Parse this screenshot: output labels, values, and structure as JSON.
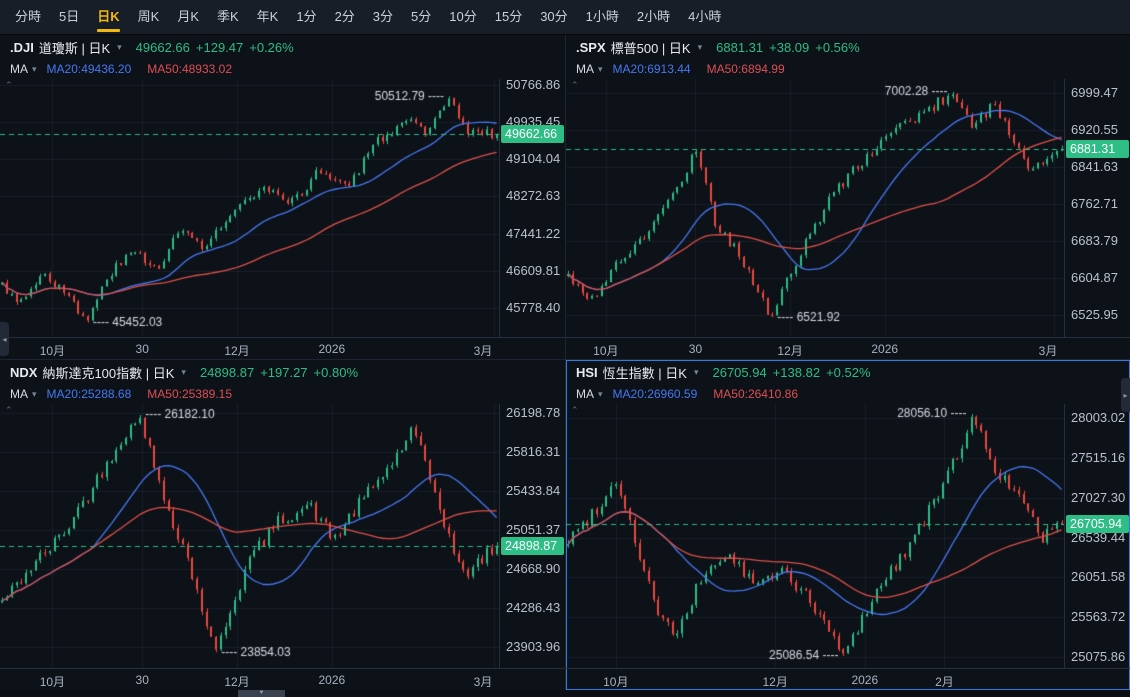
{
  "tabbar": {
    "tabs": [
      "分時",
      "5日",
      "日K",
      "周K",
      "月K",
      "季K",
      "年K",
      "1分",
      "2分",
      "3分",
      "5分",
      "10分",
      "15分",
      "30分",
      "1小時",
      "2小時",
      "4小時"
    ],
    "active": "日K",
    "active_index": 2
  },
  "strings": {
    "ma": "MA"
  },
  "icons": {
    "caret_down": "▾",
    "collapse_left": "◂",
    "collapse_right": "▸",
    "handle_down": "▼",
    "indicator_collapse": "⌃"
  },
  "colors": {
    "up": "#2ebd85",
    "down": "#e8483e",
    "ma20": "#4579f2",
    "ma50": "#dd5149",
    "grid": "rgba(130,150,180,0.10)",
    "annotation": "#d6dae2",
    "tab_accent": "#f0b90b",
    "active_border": "#2e7de0",
    "badge_bg": "#2ebd85"
  },
  "panels": [
    {
      "symbol": ".DJI",
      "title": "道瓊斯 | 日K",
      "last": "49662.66",
      "change": "+129.47",
      "change_pct": "+0.26%",
      "ma20_label": "MA20:49436.20",
      "ma50_label": "MA50:48933.02",
      "y_axis_labels": [
        "50766.86",
        "49935.45",
        "49104.04",
        "48272.63",
        "47441.22",
        "46609.81",
        "45778.40"
      ],
      "x_ticks": [
        {
          "label": "10月",
          "f": 0.105
        },
        {
          "label": "30",
          "f": 0.285
        },
        {
          "label": "12月",
          "f": 0.475
        },
        {
          "label": "2026",
          "f": 0.665
        },
        {
          "label": "3月",
          "f": 0.99
        }
      ],
      "chart_data": {
        "type": "candlestick",
        "period": "daily",
        "candle_count": 105,
        "seed": 3,
        "noise": 0.02,
        "ylim": [
          45130,
          50900
        ],
        "last": 49662.66,
        "ma20": 49436.2,
        "ma50": 48933.02,
        "high": {
          "label": "50512.79",
          "value": 50512.79,
          "f": 0.9
        },
        "low": {
          "label": "45452.03",
          "value": 45452.03,
          "f": 0.17
        },
        "trend_anchors": [
          [
            0,
            46300
          ],
          [
            0.04,
            45900
          ],
          [
            0.08,
            46600
          ],
          [
            0.12,
            46200
          ],
          [
            0.17,
            45452
          ],
          [
            0.22,
            46600
          ],
          [
            0.27,
            47050
          ],
          [
            0.31,
            46650
          ],
          [
            0.36,
            47500
          ],
          [
            0.41,
            47150
          ],
          [
            0.47,
            47950
          ],
          [
            0.53,
            48450
          ],
          [
            0.58,
            48050
          ],
          [
            0.64,
            48850
          ],
          [
            0.7,
            48500
          ],
          [
            0.76,
            49550
          ],
          [
            0.82,
            49950
          ],
          [
            0.86,
            49600
          ],
          [
            0.9,
            50450
          ],
          [
            0.94,
            49750
          ],
          [
            1,
            49662.66
          ]
        ]
      }
    },
    {
      "symbol": ".SPX",
      "title": "標普500 | 日K",
      "last": "6881.31",
      "change": "+38.09",
      "change_pct": "+0.56%",
      "ma20_label": "MA20:6913.44",
      "ma50_label": "MA50:6894.99",
      "y_axis_labels": [
        "6999.47",
        "6920.55",
        "6841.63",
        "6762.71",
        "6683.79",
        "6604.87",
        "6525.95"
      ],
      "x_ticks": [
        {
          "label": "10月",
          "f": 0.08
        },
        {
          "label": "30",
          "f": 0.26
        },
        {
          "label": "12月",
          "f": 0.45
        },
        {
          "label": "2026",
          "f": 0.64
        },
        {
          "label": "3月",
          "f": 0.98
        }
      ],
      "chart_data": {
        "type": "candlestick",
        "period": "daily",
        "candle_count": 105,
        "seed": 17,
        "noise": 0.022,
        "ylim": [
          6480,
          7030
        ],
        "last": 6881.31,
        "ma20": 6913.44,
        "ma50": 6894.99,
        "high": {
          "label": "7002.28",
          "value": 7002.28,
          "f": 0.78
        },
        "low": {
          "label": "6521.92",
          "value": 6521.92,
          "f": 0.41
        },
        "trend_anchors": [
          [
            0,
            6610
          ],
          [
            0.05,
            6560
          ],
          [
            0.1,
            6640
          ],
          [
            0.16,
            6700
          ],
          [
            0.22,
            6800
          ],
          [
            0.26,
            6880
          ],
          [
            0.3,
            6720
          ],
          [
            0.35,
            6650
          ],
          [
            0.41,
            6525
          ],
          [
            0.48,
            6680
          ],
          [
            0.54,
            6790
          ],
          [
            0.6,
            6860
          ],
          [
            0.66,
            6920
          ],
          [
            0.72,
            6960
          ],
          [
            0.78,
            7000
          ],
          [
            0.82,
            6930
          ],
          [
            0.86,
            6975
          ],
          [
            0.9,
            6905
          ],
          [
            0.94,
            6835
          ],
          [
            1,
            6881.31
          ]
        ]
      }
    },
    {
      "symbol": "NDX",
      "title": "納斯達克100指數 | 日K",
      "last": "24898.87",
      "change": "+197.27",
      "change_pct": "+0.80%",
      "ma20_label": "MA20:25288.68",
      "ma50_label": "MA50:25389.15",
      "y_axis_labels": [
        "26198.78",
        "25816.31",
        "25433.84",
        "25051.37",
        "24668.90",
        "24286.43",
        "23903.96"
      ],
      "x_ticks": [
        {
          "label": "10月",
          "f": 0.105
        },
        {
          "label": "30",
          "f": 0.285
        },
        {
          "label": "12月",
          "f": 0.475
        },
        {
          "label": "2026",
          "f": 0.665
        },
        {
          "label": "3月",
          "f": 0.99
        }
      ],
      "chart_data": {
        "type": "candlestick",
        "period": "daily",
        "candle_count": 105,
        "seed": 42,
        "noise": 0.026,
        "ylim": [
          23700,
          26290
        ],
        "last": 24898.87,
        "ma20": 25288.68,
        "ma50": 25389.15,
        "high": {
          "label": "26182.10",
          "value": 26182.1,
          "f": 0.28
        },
        "low": {
          "label": "23854.03",
          "value": 23854.03,
          "f": 0.43
        },
        "trend_anchors": [
          [
            0,
            24350
          ],
          [
            0.06,
            24700
          ],
          [
            0.12,
            25000
          ],
          [
            0.18,
            25450
          ],
          [
            0.24,
            25950
          ],
          [
            0.28,
            26150
          ],
          [
            0.32,
            25450
          ],
          [
            0.37,
            24850
          ],
          [
            0.43,
            23860
          ],
          [
            0.5,
            24770
          ],
          [
            0.56,
            25150
          ],
          [
            0.62,
            25300
          ],
          [
            0.67,
            24960
          ],
          [
            0.73,
            25360
          ],
          [
            0.79,
            25720
          ],
          [
            0.83,
            26040
          ],
          [
            0.88,
            25350
          ],
          [
            0.93,
            24600
          ],
          [
            1,
            24898.87
          ]
        ]
      }
    },
    {
      "symbol": "HSI",
      "title": "恆生指數 | 日K",
      "last": "26705.94",
      "change": "+138.82",
      "change_pct": "+0.52%",
      "ma20_label": "MA20:26960.59",
      "ma50_label": "MA50:26410.86",
      "y_axis_labels": [
        "28003.02",
        "27515.16",
        "27027.30",
        "26539.44",
        "26051.58",
        "25563.72",
        "25075.86"
      ],
      "x_ticks": [
        {
          "label": "10月",
          "f": 0.1
        },
        {
          "label": "12月",
          "f": 0.42
        },
        {
          "label": "2026",
          "f": 0.6
        },
        {
          "label": "2月",
          "f": 0.76
        }
      ],
      "chart_data": {
        "type": "candlestick",
        "period": "daily",
        "candle_count": 105,
        "seed": 99,
        "noise": 0.026,
        "ylim": [
          24940,
          28180
        ],
        "last": 26705.94,
        "ma20": 26960.59,
        "ma50": 26410.86,
        "high": {
          "label": "28056.10",
          "value": 28056.1,
          "f": 0.82
        },
        "low": {
          "label": "25086.54",
          "value": 25086.54,
          "f": 0.56
        },
        "trend_anchors": [
          [
            0,
            26500
          ],
          [
            0.05,
            26850
          ],
          [
            0.1,
            27250
          ],
          [
            0.14,
            26400
          ],
          [
            0.18,
            25650
          ],
          [
            0.22,
            25300
          ],
          [
            0.27,
            26050
          ],
          [
            0.32,
            26350
          ],
          [
            0.38,
            25950
          ],
          [
            0.44,
            26150
          ],
          [
            0.5,
            25650
          ],
          [
            0.56,
            25100
          ],
          [
            0.62,
            25850
          ],
          [
            0.68,
            26350
          ],
          [
            0.74,
            26950
          ],
          [
            0.78,
            27450
          ],
          [
            0.82,
            28020
          ],
          [
            0.86,
            27450
          ],
          [
            0.92,
            26950
          ],
          [
            0.96,
            26550
          ],
          [
            1,
            26705.94
          ]
        ]
      }
    }
  ]
}
